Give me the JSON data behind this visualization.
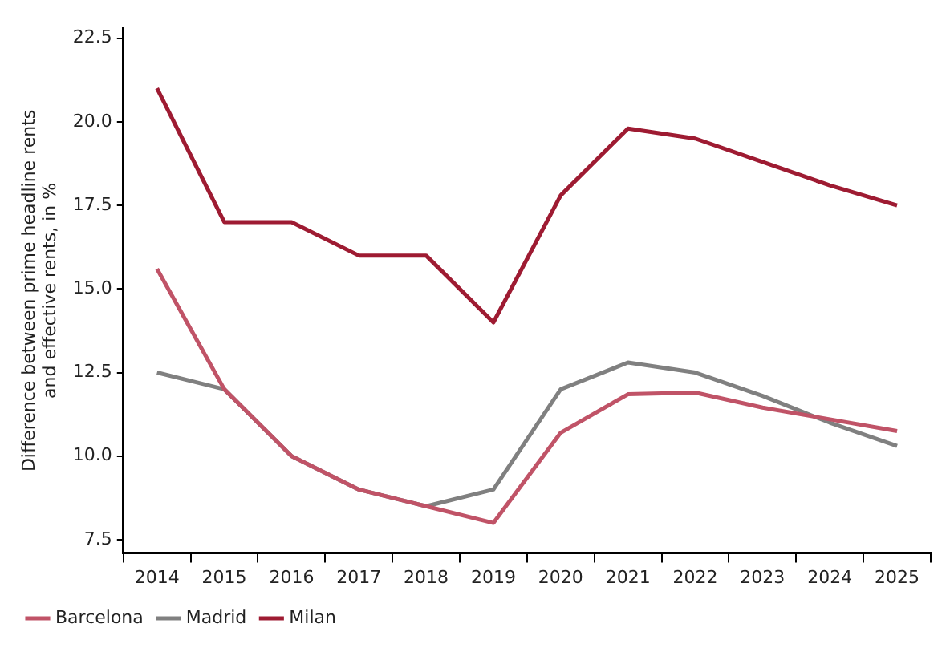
{
  "chart_data": {
    "type": "line",
    "ylabel": "Difference between prime headline rents\nand effective rents, in %",
    "categories": [
      "2014",
      "2015",
      "2016",
      "2017",
      "2018",
      "2019",
      "2020",
      "2021",
      "2022",
      "2023",
      "2024",
      "2025"
    ],
    "series": [
      {
        "name": "Barcelona",
        "color": "#c05367",
        "values": [
          15.6,
          12.0,
          10.0,
          9.0,
          8.5,
          8.0,
          10.7,
          11.85,
          11.9,
          11.45,
          11.1,
          10.75
        ]
      },
      {
        "name": "Madrid",
        "color": "#808080",
        "values": [
          12.5,
          12.0,
          10.0,
          9.0,
          8.5,
          9.0,
          12.0,
          12.8,
          12.5,
          11.8,
          11.0,
          10.3
        ]
      },
      {
        "name": "Milan",
        "color": "#9e1b32",
        "values": [
          21.0,
          17.0,
          17.0,
          16.0,
          16.0,
          14.0,
          17.8,
          19.8,
          19.5,
          18.8,
          18.1,
          17.5
        ]
      }
    ],
    "ylim": [
      7.1,
      22.8
    ],
    "yticks": [
      {
        "value": 7.5,
        "label": "7.5"
      },
      {
        "value": 10,
        "label": "10.0"
      },
      {
        "value": 12.5,
        "label": "12.5"
      },
      {
        "value": 15,
        "label": "15.0"
      },
      {
        "value": 17.5,
        "label": "17.5"
      },
      {
        "value": 20,
        "label": "20.0"
      },
      {
        "value": 22.5,
        "label": "22.5"
      }
    ],
    "grid": false,
    "legend": "bottom left",
    "marker": "none",
    "line_style": "solid"
  }
}
